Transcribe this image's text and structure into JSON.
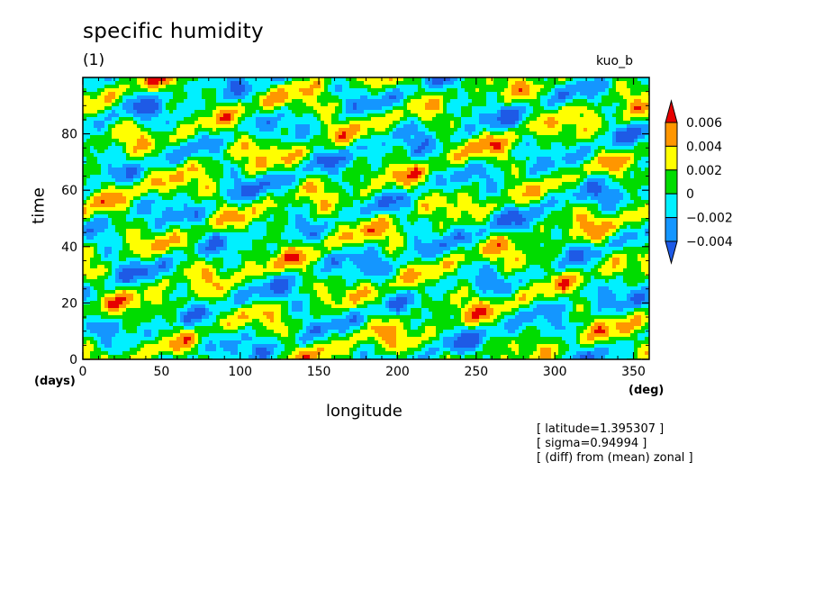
{
  "chart_data": {
    "type": "heatmap",
    "title": "specific humidity",
    "subtitle": "(1)",
    "run_label": "kuo_b",
    "xlabel": "longitude",
    "ylabel": "time",
    "x_unit": "(deg)",
    "y_unit": "(days)",
    "xlim": [
      0,
      360
    ],
    "ylim": [
      0,
      100
    ],
    "x_ticks": [
      "0",
      "50",
      "100",
      "150",
      "200",
      "250",
      "300",
      "350"
    ],
    "x_tick_values": [
      0,
      50,
      100,
      150,
      200,
      250,
      300,
      350
    ],
    "y_ticks": [
      "0",
      "20",
      "40",
      "60",
      "80"
    ],
    "y_tick_values": [
      0,
      20,
      40,
      60,
      80
    ],
    "colorbar": {
      "labels": [
        "0.006",
        "0.004",
        "0.002",
        "0",
        "−0.002",
        "−0.004"
      ],
      "levels": [
        -0.006,
        -0.004,
        -0.002,
        0,
        0.002,
        0.004,
        0.006
      ],
      "colors": [
        "#1e5ae6",
        "#1496ff",
        "#00f0ff",
        "#00dc00",
        "#ffff00",
        "#ff9600",
        "#e60000"
      ]
    },
    "annotations": [
      "[ latitude=1.395307 ]",
      "[ sigma=0.94994 ]",
      "[ (diff) from (mean) zonal ]"
    ]
  }
}
